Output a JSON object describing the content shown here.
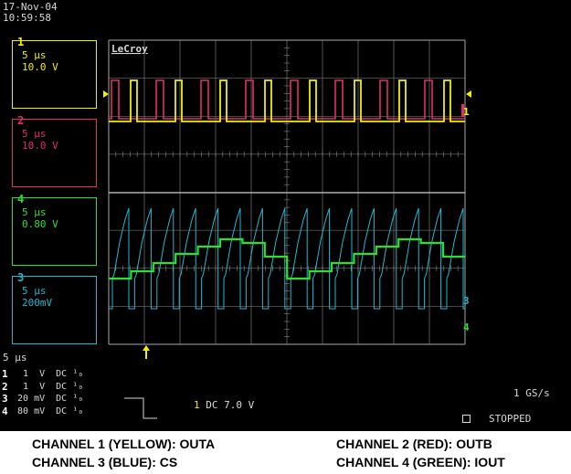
{
  "header": {
    "date": "17-Nov-04",
    "time": "10:59:58"
  },
  "brand": "LeCroy",
  "colors": {
    "ch1": "#f0f000",
    "ch2": "#e0306a",
    "ch3": "#24b7cf",
    "ch4": "#2ee02e",
    "grid": "#8a8a8a"
  },
  "channels": [
    {
      "num": "1",
      "timebase": "5 µs",
      "volts": "10.0 V"
    },
    {
      "num": "2",
      "timebase": "5 µs",
      "volts": "10.0 V"
    },
    {
      "num": "4",
      "timebase": "5 µs",
      "volts": "0.80 V"
    },
    {
      "num": "3",
      "timebase": "5 µs",
      "volts": "200mV"
    }
  ],
  "right_markers": {
    "ch1": "1",
    "ch3": "3",
    "ch4": "4"
  },
  "timebase": "5 µs",
  "settings_rows": [
    {
      "num": "1",
      "value": "1",
      "unit": "V",
      "coupling": "DC",
      "bw": "¹₀"
    },
    {
      "num": "2",
      "value": "1",
      "unit": "V",
      "coupling": "DC",
      "bw": "¹₀"
    },
    {
      "num": "3",
      "value": "20",
      "unit": "mV",
      "coupling": "DC",
      "bw": "¹₀"
    },
    {
      "num": "4",
      "value": "80",
      "unit": "mV",
      "coupling": "DC",
      "bw": "¹₀"
    }
  ],
  "trigger": {
    "source": "1",
    "coupling": "DC",
    "level": "7.0 V"
  },
  "sample_rate": "1 GS/s",
  "status": "STOPPED",
  "captions": {
    "ch1": "CHANNEL 1 (YELLOW): OUTA",
    "ch2": "CHANNEL 2 (RED): OUTB",
    "ch3": "CHANNEL 3 (BLUE): CS",
    "ch4": "CHANNEL 4 (GREEN): IOUT"
  }
}
